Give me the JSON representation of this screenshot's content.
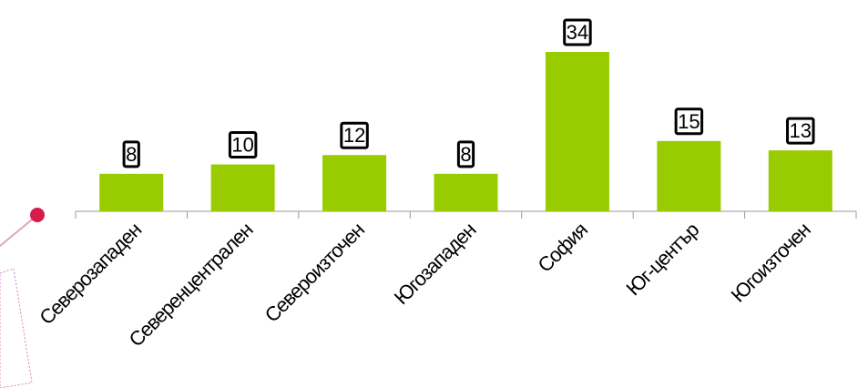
{
  "chart_data": {
    "type": "bar",
    "categories": [
      "Северозападен",
      "Северенцентрален",
      "Североизточен",
      "Югозападен",
      "София",
      "Юг-център",
      "Югоизточен"
    ],
    "values": [
      8,
      10,
      12,
      8,
      34,
      15,
      13
    ],
    "color": "#99cc00",
    "ylim": [
      0,
      34
    ]
  }
}
